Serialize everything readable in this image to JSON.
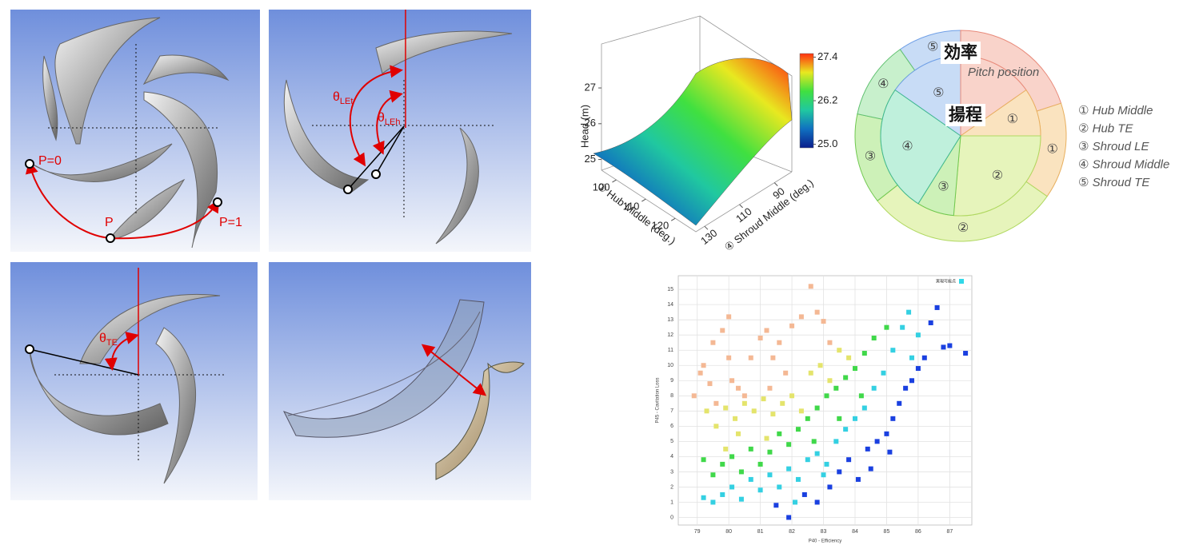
{
  "blade_panels": {
    "pitch_labels": [
      "P=0",
      "P",
      "P=1"
    ],
    "theta": "θ",
    "le_subscripts": [
      "LEt",
      "LEh"
    ],
    "te_subscript": "TE"
  },
  "pitch_diagram": {
    "outer_title": "効率",
    "inner_title": "揚程",
    "pitch_label": "Pitch position",
    "outer_segments": [
      "⑤",
      "①",
      "②",
      "③",
      "④"
    ],
    "inner_segments": [
      "⑤",
      "①",
      "②",
      "③",
      "④"
    ],
    "legend": [
      "① Hub Middle",
      "② Hub TE",
      "③ Shroud LE",
      "④ Shroud Middle",
      "⑤ Shroud TE"
    ]
  },
  "chart_data": [
    {
      "type": "surface",
      "zlabel": "Head (m)",
      "xlabel": "① Hub Middle (deg.)",
      "ylabel": "④ Shroud Middle (deg.)",
      "xlim": [
        95,
        127
      ],
      "xticks": [
        100,
        110,
        120
      ],
      "ylim": [
        135,
        80
      ],
      "yticks": [
        130,
        110,
        90
      ],
      "zlim": [
        24.7,
        28.9
      ],
      "zticks": [
        25,
        26,
        27
      ],
      "clim": [
        24.9,
        27.5
      ],
      "colorbar_ticks": [
        {
          "value": 25,
          "label": "25.0"
        },
        26.2,
        27.4
      ],
      "colormap": [
        "#0a1e8c",
        "#1070c0",
        "#20c8a0",
        "#40e040",
        "#e8e820",
        "#ff3010"
      ]
    },
    {
      "type": "scatter",
      "xlabel": "P40 - Efficiency",
      "ylabel": "P45 - Cavitation Loss",
      "legend_label": "実現可能点",
      "legend_color": "#30d8e8",
      "xlim": [
        78.4,
        87.7
      ],
      "xticks": [
        79,
        80,
        81,
        82,
        83,
        84,
        85,
        86,
        87
      ],
      "ylim": [
        -0.5,
        15.9
      ],
      "yticks": [
        0,
        1,
        2,
        3,
        4,
        5,
        6,
        7,
        8,
        9,
        10,
        11,
        12,
        13,
        14,
        15
      ],
      "grid": true,
      "series": [
        {
          "color": "#f4b894",
          "x": [
            78.9,
            79.1,
            79.2,
            79.4,
            79.5,
            79.8,
            80,
            80,
            80.1,
            80.3,
            80.5,
            80.7,
            81,
            81.2,
            81.4,
            81.6,
            81.8,
            82,
            82.3,
            82.6,
            82.8,
            83,
            83.2,
            81.3,
            79.6
          ],
          "values": [
            8,
            9.5,
            10,
            8.8,
            11.5,
            12.3,
            13.2,
            10.5,
            9,
            8.5,
            8,
            10.5,
            11.8,
            12.3,
            10.5,
            11.5,
            9.5,
            12.6,
            13.2,
            15.2,
            13.5,
            12.9,
            11.5,
            8.5,
            7.5
          ]
        },
        {
          "color": "#e4e46c",
          "x": [
            79.3,
            79.6,
            79.9,
            80.2,
            80.5,
            80.8,
            81.1,
            81.4,
            81.7,
            82,
            82.3,
            82.6,
            82.9,
            83.2,
            83.5,
            83.8,
            79.9,
            80.3,
            81.2
          ],
          "values": [
            7,
            6,
            7.2,
            6.5,
            7.5,
            7,
            7.8,
            6.8,
            7.5,
            8,
            7,
            9.5,
            10,
            9,
            11,
            10.5,
            4.5,
            5.5,
            5.2
          ]
        },
        {
          "color": "#40d84a",
          "x": [
            79.2,
            79.5,
            79.8,
            80.1,
            80.4,
            80.7,
            81,
            81.3,
            81.6,
            81.9,
            82.2,
            82.5,
            82.8,
            83.1,
            83.4,
            83.7,
            84,
            84.3,
            84.6,
            85,
            83.5,
            82.7,
            84.2
          ],
          "values": [
            3.8,
            2.8,
            3.5,
            4,
            3,
            4.5,
            3.5,
            4.3,
            5.5,
            4.8,
            5.8,
            6.5,
            7.2,
            8,
            8.5,
            9.2,
            9.8,
            10.8,
            11.8,
            12.5,
            6.5,
            5,
            8
          ]
        },
        {
          "color": "#34d0e2",
          "x": [
            79.2,
            79.5,
            79.8,
            80.1,
            80.4,
            80.7,
            81,
            81.3,
            81.6,
            81.9,
            82.2,
            82.5,
            82.8,
            83.1,
            83.4,
            83.7,
            84,
            84.3,
            84.6,
            84.9,
            85.2,
            85.5,
            85.7,
            86,
            85.8,
            82.1,
            83
          ],
          "values": [
            1.3,
            1,
            1.5,
            2,
            1.2,
            2.5,
            1.8,
            2.8,
            2,
            3.2,
            2.5,
            3.8,
            4.2,
            3.5,
            5,
            5.8,
            6.5,
            7.2,
            8.5,
            9.5,
            11,
            12.5,
            13.5,
            12,
            10.5,
            1,
            2.8
          ]
        },
        {
          "color": "#1a40e0",
          "x": [
            81.5,
            81.9,
            82.4,
            82.8,
            83.2,
            83.5,
            83.8,
            84.1,
            84.4,
            84.7,
            85,
            85.2,
            85.4,
            85.6,
            85.8,
            86,
            86.2,
            86.4,
            86.6,
            86.8,
            87,
            87.5,
            85.1,
            84.5
          ],
          "values": [
            0.8,
            0,
            1.5,
            1,
            2,
            3,
            3.8,
            2.5,
            4.5,
            5,
            5.5,
            6.5,
            7.5,
            8.5,
            9,
            9.8,
            10.5,
            12.8,
            13.8,
            11.2,
            11.3,
            10.8,
            4.3,
            3.2
          ]
        }
      ]
    }
  ]
}
